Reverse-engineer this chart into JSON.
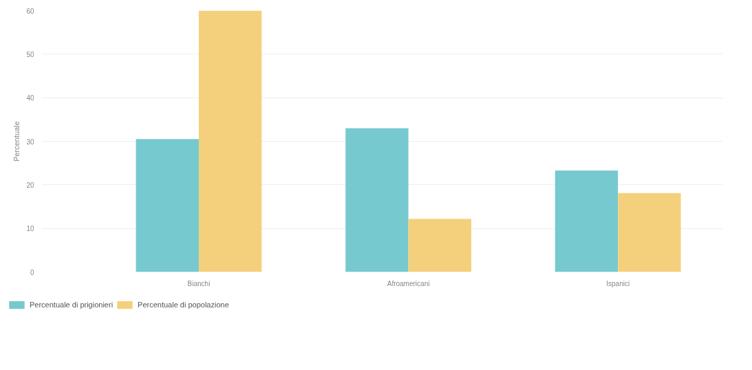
{
  "chart_data": {
    "type": "bar",
    "ylabel": "Percentuale",
    "categories": [
      "Bianchi",
      "Afroamericani",
      "Ispanici"
    ],
    "series": [
      {
        "name": "Percentuale di prigionieri",
        "color": "#76c9ce",
        "values": [
          30.5,
          33.0,
          23.3
        ]
      },
      {
        "name": "Percentuale di popolazione",
        "color": "#f4d07c",
        "values": [
          60,
          12.2,
          18.1
        ]
      }
    ],
    "ylim": [
      0,
      60
    ],
    "yticks": [
      0,
      10,
      20,
      30,
      40,
      50,
      60
    ],
    "grid": "y",
    "legend": "bottom left"
  }
}
